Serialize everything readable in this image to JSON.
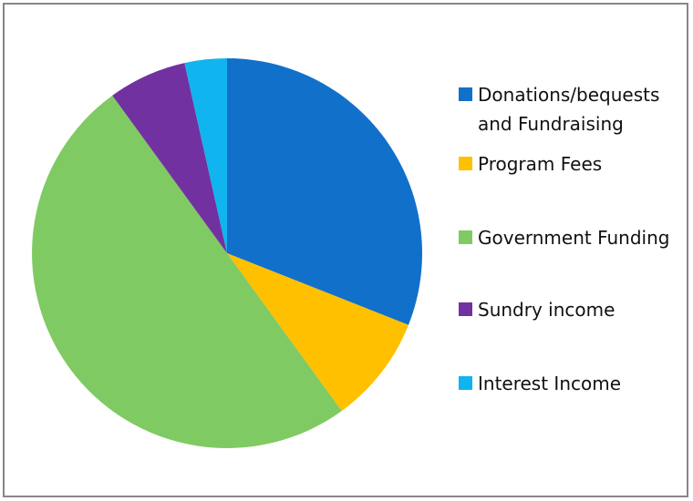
{
  "chart_data": {
    "type": "pie",
    "series": [
      {
        "name": "Donations/bequests and Fundraising",
        "value": 31,
        "color": "#1170CA"
      },
      {
        "name": "Program Fees",
        "value": 9,
        "color": "#FFC000"
      },
      {
        "name": "Government Funding",
        "value": 50,
        "color": "#7FCA63"
      },
      {
        "name": "Sundry income",
        "value": 6.5,
        "color": "#7231A0"
      },
      {
        "name": "Interest Income",
        "value": 3.5,
        "color": "#10B4EE"
      }
    ],
    "legend_position": "right"
  },
  "legend": {
    "items": [
      {
        "label": "Donations/bequests and Fundraising",
        "color": "#1170CA"
      },
      {
        "label": "Program Fees",
        "color": "#FFC000"
      },
      {
        "label": "Government Funding",
        "color": "#7FCA63"
      },
      {
        "label": "Sundry income",
        "color": "#7231A0"
      },
      {
        "label": "Interest Income",
        "color": "#10B4EE"
      }
    ]
  }
}
